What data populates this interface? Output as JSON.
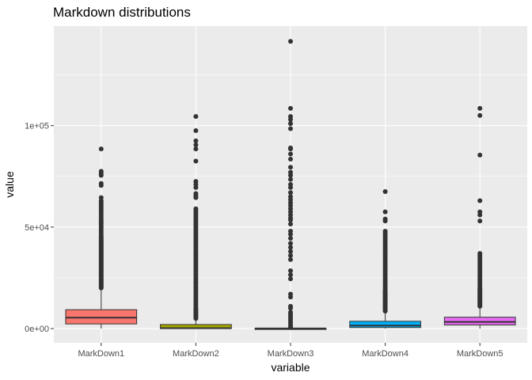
{
  "chart_data": {
    "type": "boxplot",
    "title": "Markdown distributions",
    "xlabel": "variable",
    "ylabel": "value",
    "categories": [
      "MarkDown1",
      "MarkDown2",
      "MarkDown3",
      "MarkDown4",
      "MarkDown5"
    ],
    "y_ticks": [
      0,
      50000,
      100000
    ],
    "y_tick_labels": [
      "0e+00",
      "5e+04",
      "1e+05"
    ],
    "ylim": [
      -7000,
      149000
    ],
    "grid": true,
    "colors": {
      "panel_background": "#ebebeb",
      "gridline": "#ffffff",
      "outlier": "#333333",
      "box_outline": "#333333"
    },
    "boxes": [
      {
        "category": "MarkDown1",
        "fill": "#f8766d",
        "min": 0,
        "q1": 2300,
        "median": 5400,
        "q3": 9300,
        "whisker_high": 19700,
        "outliers": [
          20000,
          20500,
          21000,
          21500,
          22000,
          22500,
          23000,
          23500,
          24000,
          24500,
          25000,
          25500,
          26000,
          26500,
          27000,
          27500,
          28000,
          28500,
          29000,
          29500,
          30000,
          30500,
          31000,
          31500,
          32000,
          32500,
          33000,
          33500,
          34000,
          34500,
          35000,
          35500,
          36000,
          36500,
          37000,
          37500,
          38000,
          38500,
          39000,
          39500,
          40000,
          40500,
          41000,
          41500,
          42000,
          42500,
          43000,
          43500,
          44000,
          44500,
          45000,
          45500,
          46500,
          47500,
          48500,
          49500,
          50500,
          51500,
          52000,
          53000,
          54000,
          55000,
          56000,
          57000,
          58000,
          59000,
          60000,
          61000,
          62000,
          63000,
          64500,
          70500,
          71500,
          75500,
          76500,
          77500,
          88500
        ]
      },
      {
        "category": "MarkDown2",
        "fill": "#a3a500",
        "min": 0,
        "q1": 0,
        "median": 200,
        "q3": 2000,
        "whisker_high": 4800,
        "outliers": [
          5000,
          5500,
          6000,
          6500,
          7000,
          7500,
          8000,
          8500,
          9000,
          9500,
          10000,
          11000,
          12000,
          13000,
          14000,
          15000,
          16000,
          17000,
          18000,
          19000,
          20000,
          21000,
          22000,
          23000,
          24000,
          25000,
          26000,
          27000,
          28000,
          29000,
          30000,
          31000,
          32000,
          33000,
          34000,
          35000,
          36000,
          37000,
          38000,
          39000,
          40000,
          41000,
          42000,
          43000,
          44000,
          45000,
          46000,
          47000,
          48000,
          49000,
          50000,
          51000,
          52000,
          53000,
          54000,
          55000,
          56000,
          57000,
          58000,
          59000,
          64500,
          65500,
          66500,
          69500,
          71000,
          72500,
          82500,
          88500,
          90500,
          92500,
          97500,
          104500
        ]
      },
      {
        "category": "MarkDown3",
        "fill": "#00bf7d",
        "min": 0,
        "q1": 0,
        "median": 50,
        "q3": 150,
        "whisker_high": 400,
        "outliers": [
          500,
          1000,
          2000,
          3000,
          4000,
          5000,
          6000,
          7000,
          8000,
          10000,
          11000,
          15500,
          17000,
          24500,
          26500,
          28500,
          34000,
          36000,
          38000,
          40000,
          42000,
          44500,
          46500,
          48000,
          51500,
          53500,
          54500,
          56000,
          57500,
          59000,
          60500,
          62000,
          63500,
          65000,
          67000,
          69500,
          71000,
          73500,
          75500,
          77000,
          79500,
          83500,
          86000,
          88500,
          89000,
          98500,
          101000,
          103000,
          104500,
          108500,
          141500
        ]
      },
      {
        "category": "MarkDown4",
        "fill": "#00b0f6",
        "min": 0,
        "q1": 500,
        "median": 1500,
        "q3": 3600,
        "whisker_high": 8400,
        "outliers": [
          8600,
          9000,
          9500,
          10000,
          10500,
          11000,
          11500,
          12000,
          12500,
          13000,
          13500,
          14000,
          14500,
          15000,
          15500,
          16000,
          16500,
          17000,
          17500,
          18000,
          18500,
          19000,
          20000,
          21000,
          22000,
          23000,
          24000,
          25000,
          26000,
          27000,
          28000,
          29000,
          30000,
          31000,
          32000,
          33000,
          34000,
          35000,
          36000,
          37000,
          38000,
          39000,
          40000,
          41000,
          42000,
          43000,
          44000,
          45000,
          46000,
          47000,
          48000,
          53000,
          54000,
          57500,
          67500
        ]
      },
      {
        "category": "MarkDown5",
        "fill": "#e76bf3",
        "min": 0,
        "q1": 1800,
        "median": 3300,
        "q3": 5600,
        "whisker_high": 10800,
        "outliers": [
          11000,
          11500,
          12000,
          12500,
          13000,
          13500,
          14000,
          14500,
          15000,
          15500,
          16000,
          16500,
          17000,
          17500,
          18000,
          18500,
          19000,
          19500,
          20000,
          21000,
          22000,
          23000,
          24000,
          25000,
          26000,
          27000,
          28000,
          29000,
          30000,
          31000,
          32000,
          33000,
          34000,
          35000,
          36000,
          37000,
          53000,
          56000,
          57500,
          63000,
          85500,
          105000,
          108500
        ]
      }
    ]
  }
}
